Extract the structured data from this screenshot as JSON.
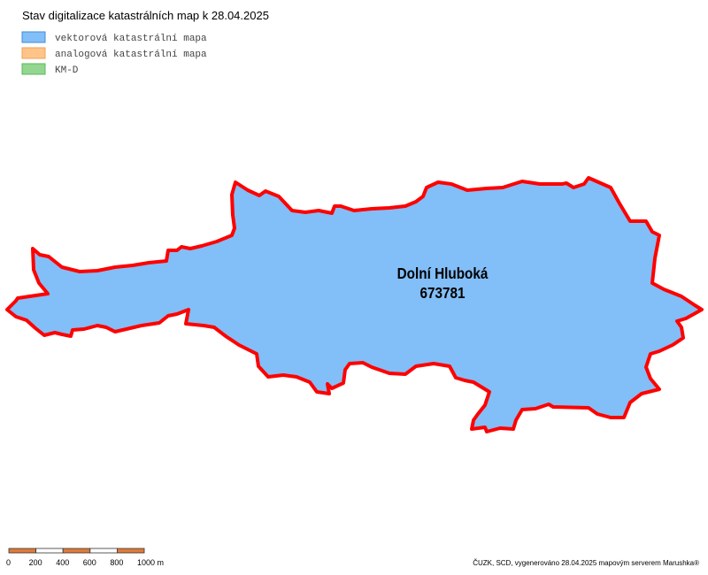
{
  "title": "Stav digitalizace katastrálních map k 28.04.2025",
  "legend": [
    "vektorová katastrální mapa",
    "analogová katastrální mapa",
    "KM-D"
  ],
  "area": {
    "name": "Dolní Hluboká",
    "code": "673781"
  },
  "scale": {
    "ticks": [
      "0",
      "200",
      "400",
      "600",
      "800",
      "1000 m"
    ]
  },
  "footer": "ČUZK, SCD, vygenerováno 28.04.2025 mapovým serverem Marushka®"
}
